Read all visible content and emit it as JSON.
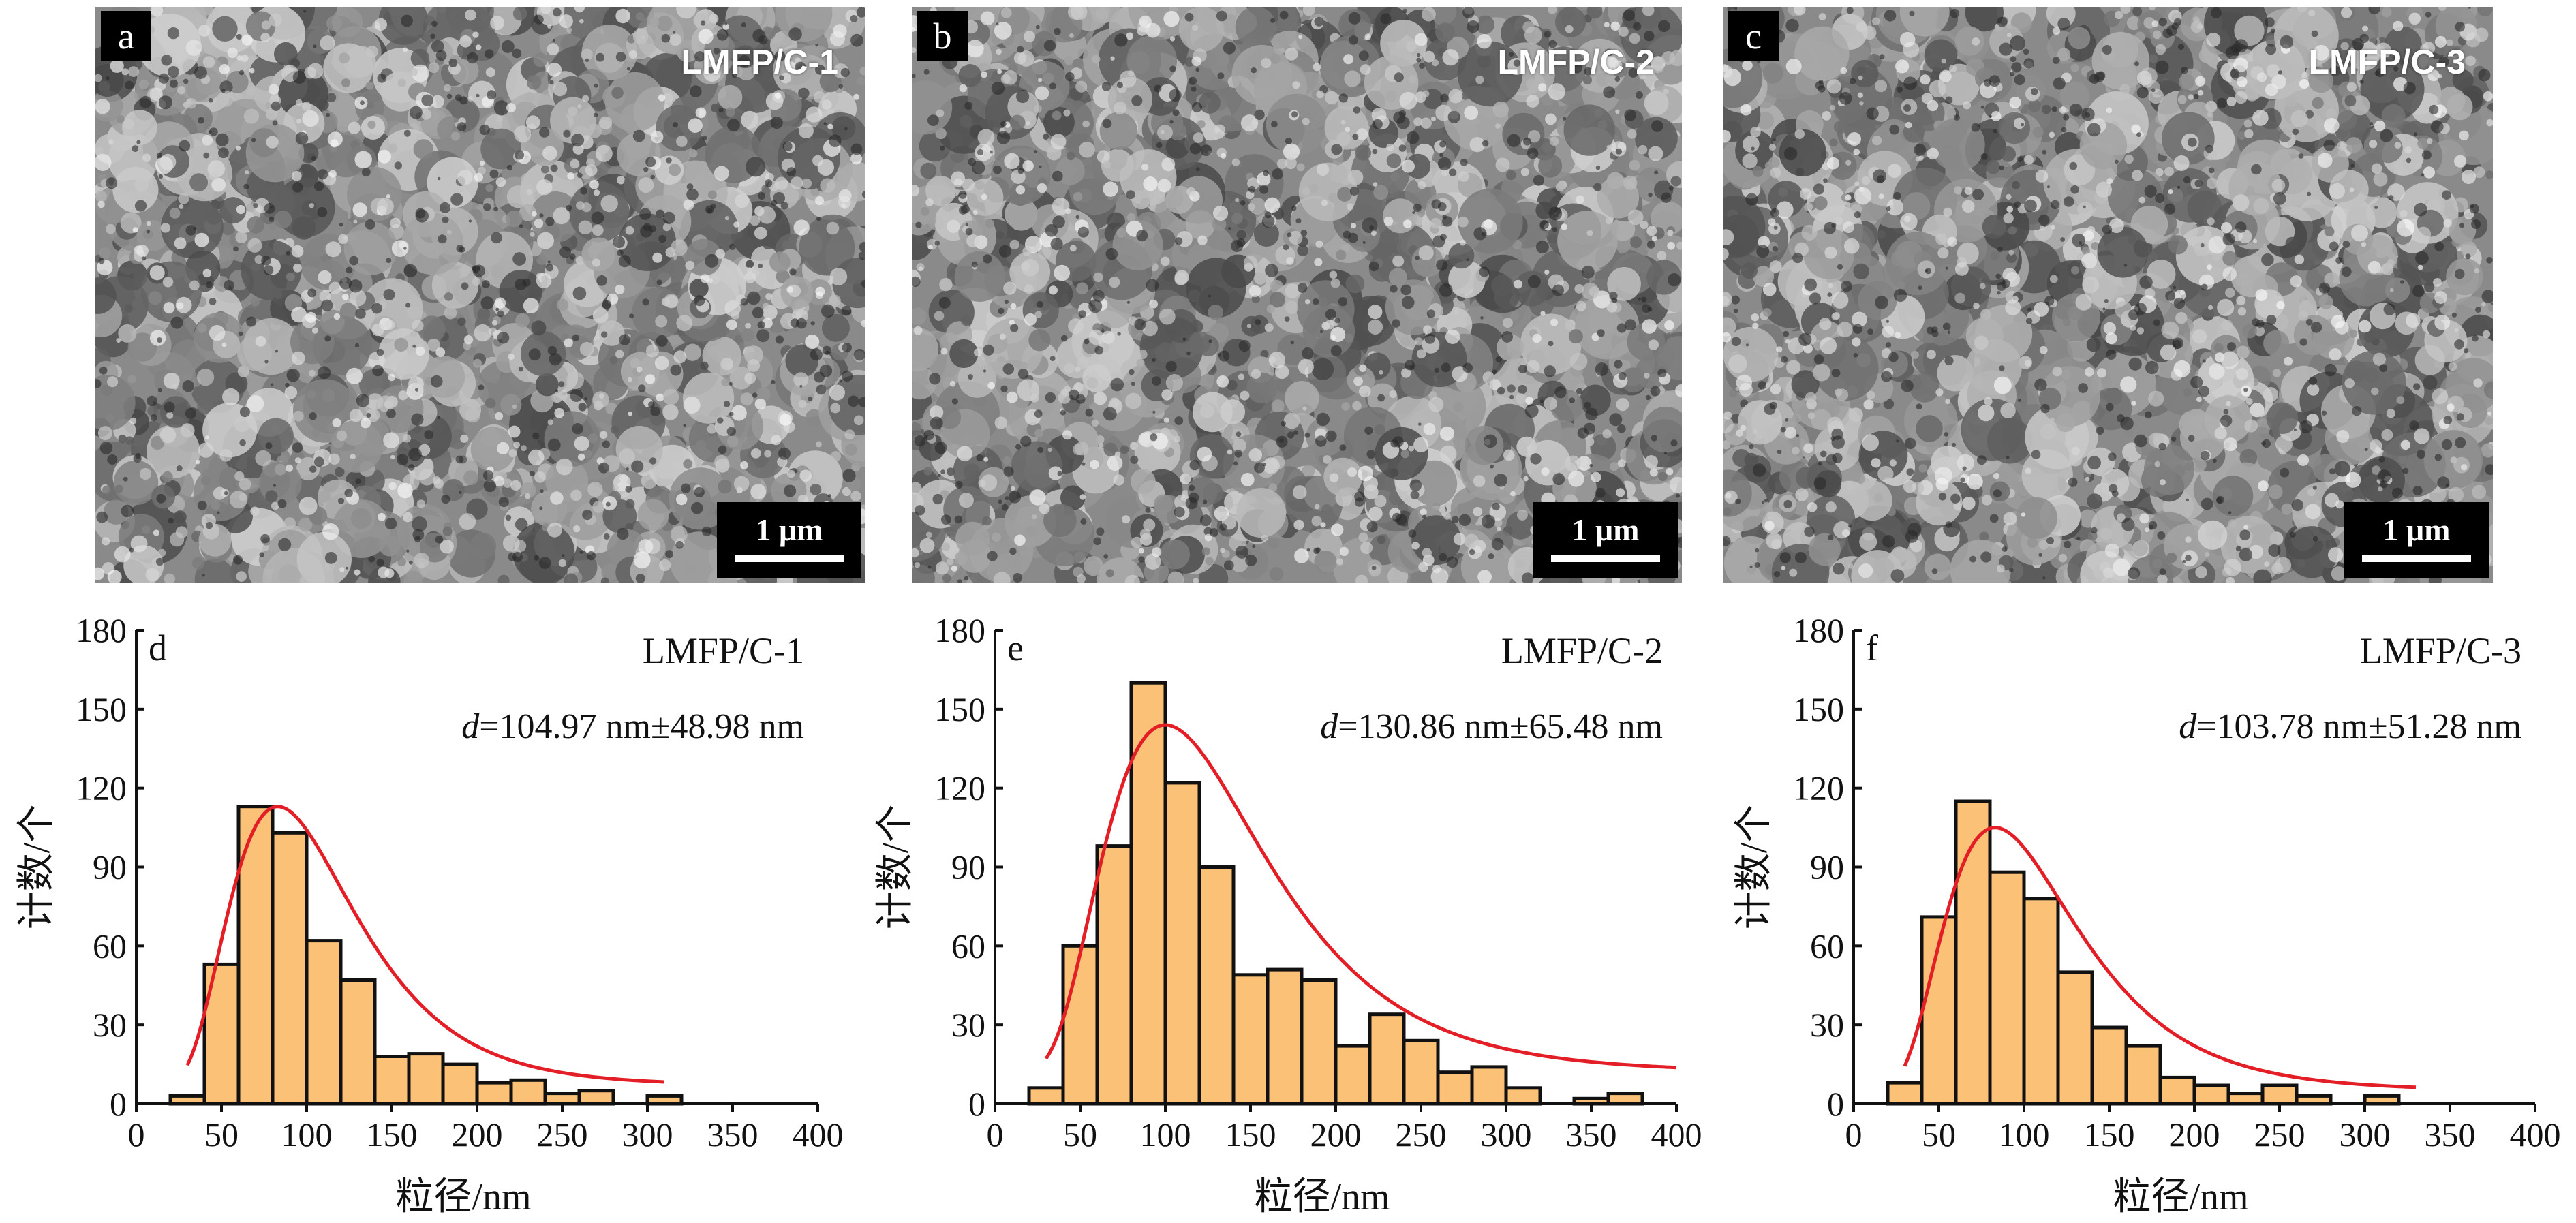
{
  "sem_panels": [
    {
      "letter": "a",
      "title": "LMFP/C-1",
      "scale_label": "1 μm"
    },
    {
      "letter": "b",
      "title": "LMFP/C-2",
      "scale_label": "1 μm"
    },
    {
      "letter": "c",
      "title": "LMFP/C-3",
      "scale_label": "1 μm"
    }
  ],
  "colors": {
    "bar_fill": "#FBC176",
    "bar_stroke": "#111111",
    "fit_line": "#E41E26",
    "sem_gray": "#8a8a8a"
  },
  "chart_data": [
    {
      "type": "bar",
      "panel_letter": "d",
      "sample": "LMFP/C-1",
      "annotation_symbol": "d",
      "annotation_value": "=104.97 nm±48.98 nm",
      "xlabel": "粒径/nm",
      "ylabel": "计数/个",
      "xlim": [
        0,
        400
      ],
      "ylim": [
        0,
        180
      ],
      "xticks": [
        0,
        50,
        100,
        150,
        200,
        250,
        300,
        350,
        400
      ],
      "yticks": [
        0,
        30,
        60,
        90,
        120,
        150,
        180
      ],
      "bin_width": 20,
      "bin_centers": [
        30,
        50,
        70,
        90,
        110,
        130,
        150,
        170,
        190,
        210,
        230,
        250,
        270,
        290,
        310
      ],
      "values": [
        3,
        53,
        113,
        103,
        62,
        47,
        18,
        19,
        15,
        8,
        9,
        4,
        5,
        0,
        3
      ],
      "fit": {
        "type": "lognormal",
        "mean": 104.97,
        "std": 48.98,
        "x_range": [
          30,
          310
        ],
        "y_max": 113,
        "mode_x": 83,
        "baseline": 7
      }
    },
    {
      "type": "bar",
      "panel_letter": "e",
      "sample": "LMFP/C-2",
      "annotation_symbol": "d",
      "annotation_value": "=130.86 nm±65.48 nm",
      "xlabel": "粒径/nm",
      "ylabel": "计数/个",
      "xlim": [
        0,
        400
      ],
      "ylim": [
        0,
        180
      ],
      "xticks": [
        0,
        50,
        100,
        150,
        200,
        250,
        300,
        350,
        400
      ],
      "yticks": [
        0,
        30,
        60,
        90,
        120,
        150,
        180
      ],
      "bin_width": 20,
      "bin_centers": [
        30,
        50,
        70,
        90,
        110,
        130,
        150,
        170,
        190,
        210,
        230,
        250,
        270,
        290,
        310,
        330,
        350,
        370
      ],
      "values": [
        6,
        60,
        98,
        160,
        122,
        90,
        49,
        51,
        47,
        22,
        34,
        24,
        12,
        14,
        6,
        0,
        2,
        4
      ],
      "fit": {
        "type": "lognormal",
        "mean": 130.86,
        "std": 65.48,
        "x_range": [
          30,
          400
        ],
        "y_max": 144,
        "mode_x": 100,
        "baseline": 12
      }
    },
    {
      "type": "bar",
      "panel_letter": "f",
      "sample": "LMFP/C-3",
      "annotation_symbol": "d",
      "annotation_value": "=103.78 nm±51.28 nm",
      "xlabel": "粒径/nm",
      "ylabel": "计数/个",
      "xlim": [
        0,
        400
      ],
      "ylim": [
        0,
        180
      ],
      "xticks": [
        0,
        50,
        100,
        150,
        200,
        250,
        300,
        350,
        400
      ],
      "yticks": [
        0,
        30,
        60,
        90,
        120,
        150,
        180
      ],
      "bin_width": 20,
      "bin_centers": [
        30,
        50,
        70,
        90,
        110,
        130,
        150,
        170,
        190,
        210,
        230,
        250,
        270,
        290,
        310
      ],
      "values": [
        8,
        71,
        115,
        88,
        78,
        50,
        29,
        22,
        10,
        7,
        4,
        7,
        3,
        0,
        3
      ],
      "fit": {
        "type": "lognormal",
        "mean": 103.78,
        "std": 51.28,
        "x_range": [
          30,
          330
        ],
        "y_max": 105,
        "mode_x": 83,
        "baseline": 5
      }
    }
  ]
}
